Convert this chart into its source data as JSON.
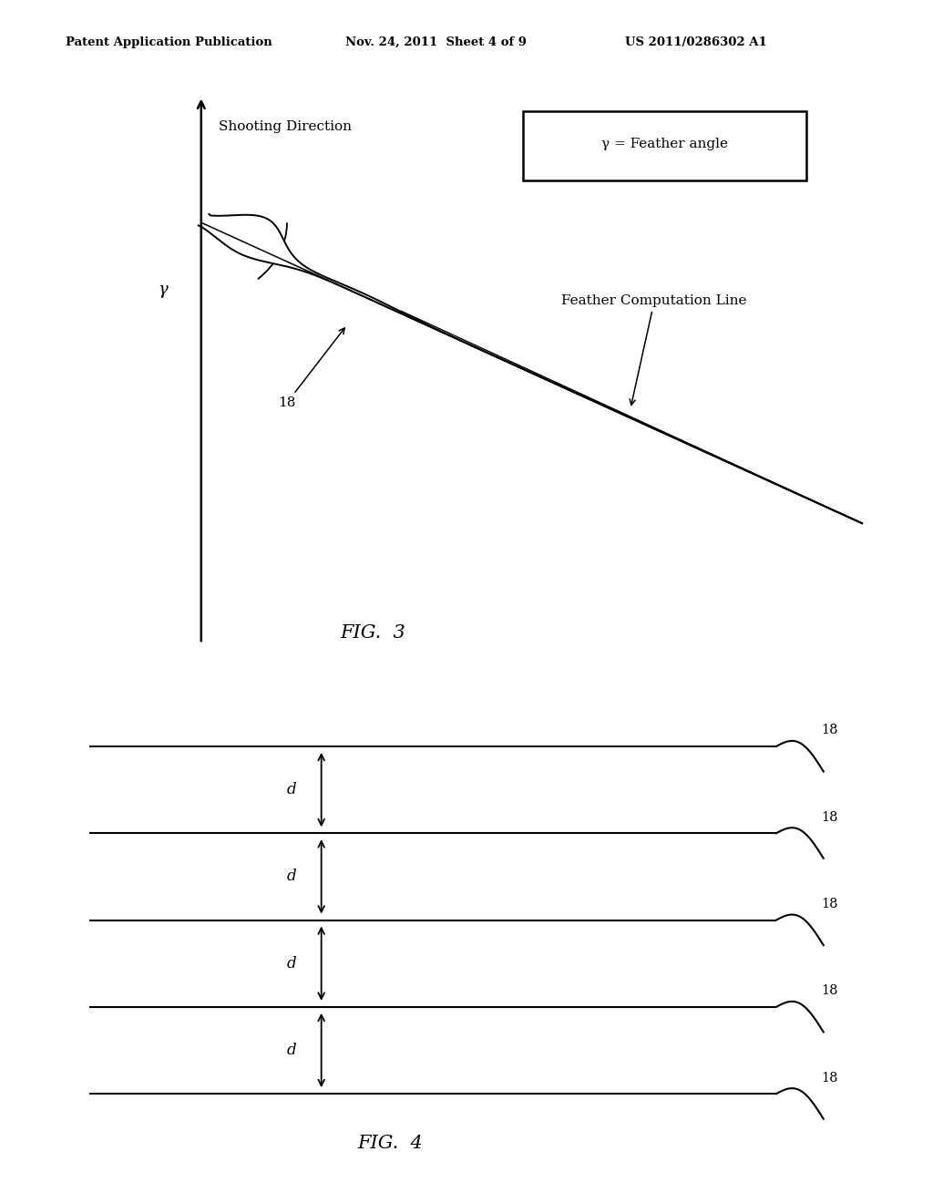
{
  "background_color": "#ffffff",
  "header_left": "Patent Application Publication",
  "header_center": "Nov. 24, 2011  Sheet 4 of 9",
  "header_right": "US 2011/0286302 A1",
  "fig3_title": "FIG.  3",
  "fig4_title": "FIG.  4",
  "fig3_legend_text": "γ = Feather angle",
  "fig3_label_gamma": "γ",
  "fig3_label_shooting": "Shooting Direction",
  "fig3_label_18": "18",
  "fig3_label_fcl": "Feather Computation Line",
  "fig4_label_d": "d",
  "fig4_label_18": "18"
}
